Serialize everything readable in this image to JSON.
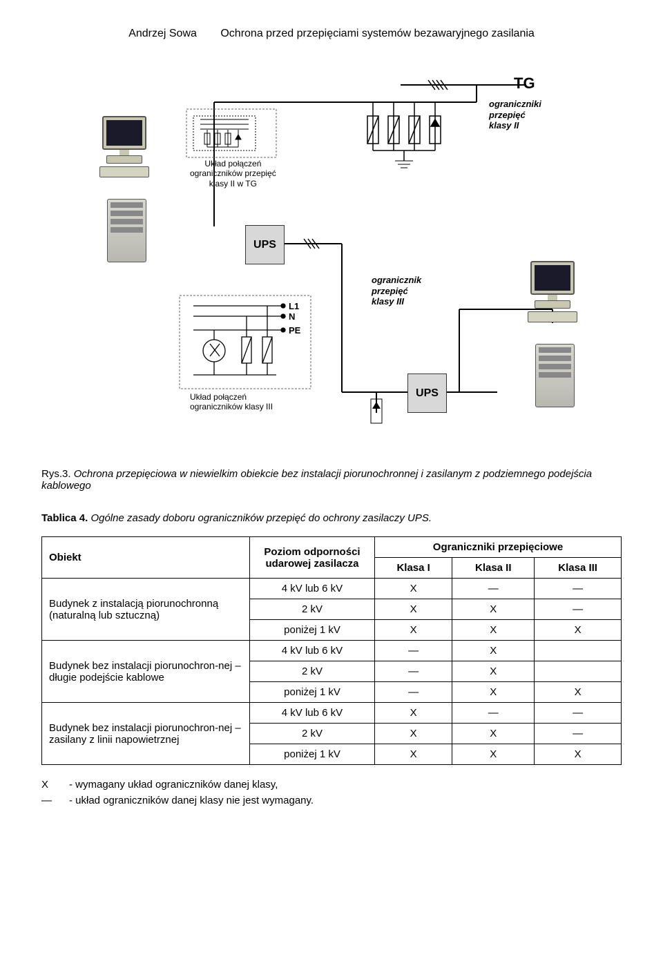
{
  "header": {
    "author": "Andrzej Sowa",
    "title": "Ochrona przed przepięciami systemów bezawaryjnego zasilania"
  },
  "diagram": {
    "tg": "TG",
    "ups": "UPS",
    "limit_class2": "ograniczniki\nprzepięć\nklasy II",
    "limit_class3": "ogranicznik\nprzepięć\nklasy III",
    "box1": "Układ połączeń\nograniczników przepięć\nklasy II w TG",
    "box2": "Układ połączeń\nograniczników klasy III",
    "L1": "L1",
    "N": "N",
    "PE": "PE"
  },
  "caption": {
    "prefix": "Rys.3.",
    "text": "Ochrona przepięciowa w niewielkim obiekcie bez instalacji piorunochronnej i zasilanym z podziemnego podejścia kablowego"
  },
  "table_title": {
    "prefix": "Tablica 4.",
    "text": "Ogólne zasady doboru ograniczników przepięć do ochrony zasilaczy UPS."
  },
  "table": {
    "headers": {
      "object": "Obiekt",
      "level": "Poziom odporności udarowej zasilacza",
      "group": "Ograniczniki przepięciowe",
      "k1": "Klasa I",
      "k2": "Klasa II",
      "k3": "Klasa III"
    },
    "objects": [
      "Budynek z instalacją piorunochronną (naturalną lub sztuczną)",
      "Budynek bez instalacji piorunochron-nej – długie podejście kablowe",
      "Budynek bez instalacji piorunochron-nej – zasilany z linii napowietrznej"
    ],
    "levels": [
      "4 kV lub 6 kV",
      "2 kV",
      "poniżej 1 kV"
    ],
    "marks": {
      "x": "X",
      "d": "—",
      "e": ""
    },
    "rows": [
      [
        "x",
        "d",
        "d"
      ],
      [
        "x",
        "x",
        "d"
      ],
      [
        "x",
        "x",
        "x"
      ],
      [
        "d",
        "x",
        "e"
      ],
      [
        "d",
        "x",
        "e"
      ],
      [
        "d",
        "x",
        "x"
      ],
      [
        "x",
        "d",
        "d"
      ],
      [
        "x",
        "x",
        "d"
      ],
      [
        "x",
        "x",
        "x"
      ]
    ]
  },
  "legend": {
    "sym_x": "X",
    "sym_d": "—",
    "txt_x": "- wymagany układ ograniczników danej klasy,",
    "txt_d": "- układ ograniczników danej klasy nie jest wymagany."
  }
}
